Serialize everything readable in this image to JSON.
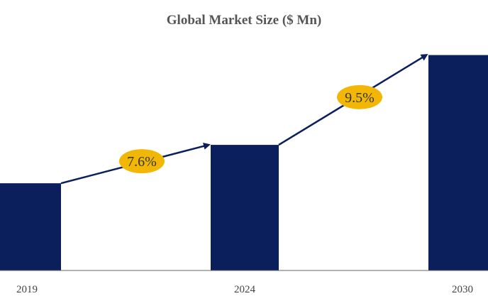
{
  "chart_data": {
    "type": "bar",
    "title": "Global Market Size ($ Mn)",
    "categories": [
      "2019",
      "2024",
      "2030"
    ],
    "values": [
      23.4,
      33.7,
      57.8
    ],
    "ylim": [
      0,
      64
    ],
    "grid": false,
    "legend": "none",
    "annotations": [
      {
        "from": "2019",
        "to": "2024",
        "label": "7.6%"
      },
      {
        "from": "2024",
        "to": "2030",
        "label": "9.5%"
      }
    ],
    "colors": {
      "bar": "#0a1f5c",
      "arrow": "#0a1f5c",
      "badge": "#f2b705",
      "axis": "#666666"
    }
  }
}
